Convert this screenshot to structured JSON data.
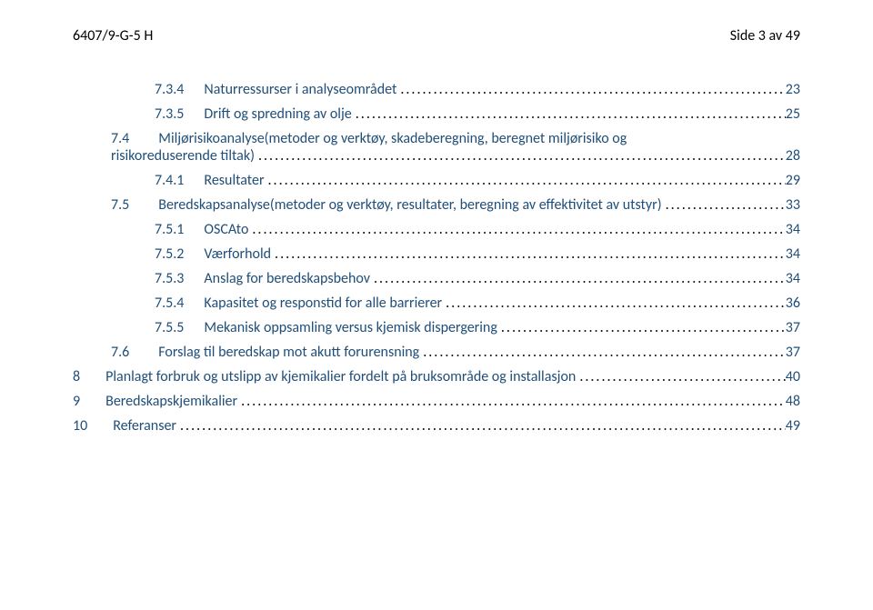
{
  "header": {
    "left": "6407/9-G-5 H",
    "right": "Side 3 av 49"
  },
  "toc": [
    {
      "level": 2,
      "num": "7.3.4",
      "title": "Naturressurser i analyseområdet",
      "page": "23",
      "color": "blue"
    },
    {
      "level": 2,
      "num": "7.3.5",
      "title": "Drift og spredning av olje",
      "page": "25",
      "color": "blue"
    },
    {
      "level": 1,
      "num": "7.4",
      "title": "Miljørisikoanalyse(metoder og verktøy, skadeberegning, beregnet miljørisiko og risikoreduserende tiltak)",
      "page": "28",
      "color": "blue",
      "wrap": true
    },
    {
      "level": 2,
      "num": "7.4.1",
      "title": "Resultater",
      "page": "29",
      "color": "blue"
    },
    {
      "level": 1,
      "num": "7.5",
      "title": "Beredskapsanalyse(metoder og verktøy, resultater, beregning av effektivitet av utstyr)",
      "page": "33",
      "color": "blue"
    },
    {
      "level": 2,
      "num": "7.5.1",
      "title": "OSCAto",
      "page": "34",
      "color": "blue"
    },
    {
      "level": 2,
      "num": "7.5.2",
      "title": "Værforhold",
      "page": "34",
      "color": "blue"
    },
    {
      "level": 2,
      "num": "7.5.3",
      "title": "Anslag for beredskapsbehov",
      "page": "34",
      "color": "blue"
    },
    {
      "level": 2,
      "num": "7.5.4",
      "title": "Kapasitet og responstid for alle barrierer",
      "page": "36",
      "color": "blue"
    },
    {
      "level": 2,
      "num": "7.5.5",
      "title": "Mekanisk oppsamling versus kjemisk dispergering",
      "page": "37",
      "color": "blue"
    },
    {
      "level": 1,
      "num": "7.6",
      "title": "Forslag til beredskap mot akutt forurensning",
      "page": "37",
      "color": "blue"
    },
    {
      "level": 0,
      "num": "8",
      "title": "Planlagt forbruk og utslipp av kjemikalier fordelt på bruksområde og installasjon",
      "page": "40",
      "color": "blue"
    },
    {
      "level": 0,
      "num": "9",
      "title": "Beredskapskjemikalier",
      "page": "48",
      "color": "blue"
    },
    {
      "level": 0,
      "num": "10",
      "title": "Referanser",
      "page": "49",
      "color": "blue"
    }
  ]
}
